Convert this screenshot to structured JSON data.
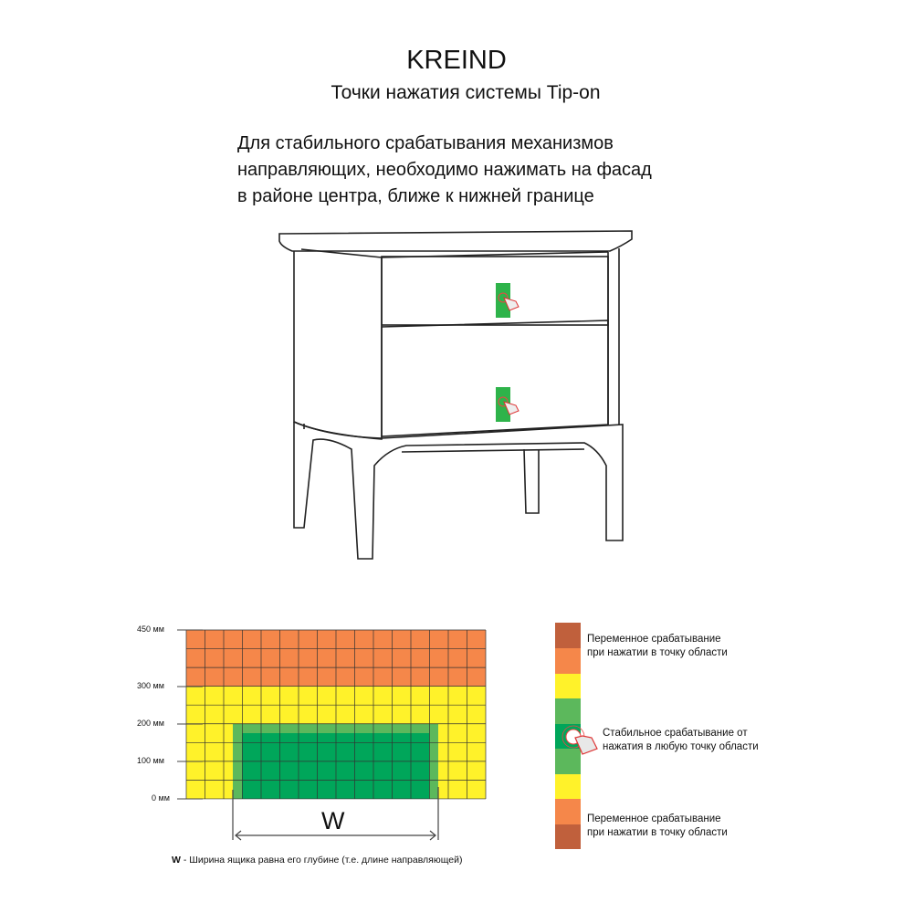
{
  "header": {
    "brand": "KREIND",
    "subtitle": "Точки нажатия системы Tip-on"
  },
  "description": [
    "Для стабильного срабатывания механизмов",
    "направляющих, необходимо нажимать на фасад",
    "в районе центра, ближе к нижней границе"
  ],
  "zone_chart": {
    "y_ticks": [
      "450 мм",
      "300 мм",
      "200 мм",
      "100 мм",
      "0 мм"
    ],
    "width_label": "W",
    "footnote_symbol": "W",
    "footnote": " - Ширина ящика равна его глубине (т.е. длине направляющей)",
    "colors": {
      "orange": "#f5874a",
      "yellow": "#fff22a",
      "light_green": "#5cb85c",
      "dark_green": "#00a65a",
      "dark_orange": "#c0603c"
    }
  },
  "legend": {
    "top": [
      "Переменное срабатывание",
      "при нажатии в точку области"
    ],
    "middle": [
      "Стабильное срабатывание от",
      "нажатия в любую точку области"
    ],
    "bottom": [
      "Переменное срабатывание",
      "при нажатии в точку области"
    ]
  },
  "icons": [
    "hand-press-icon"
  ]
}
